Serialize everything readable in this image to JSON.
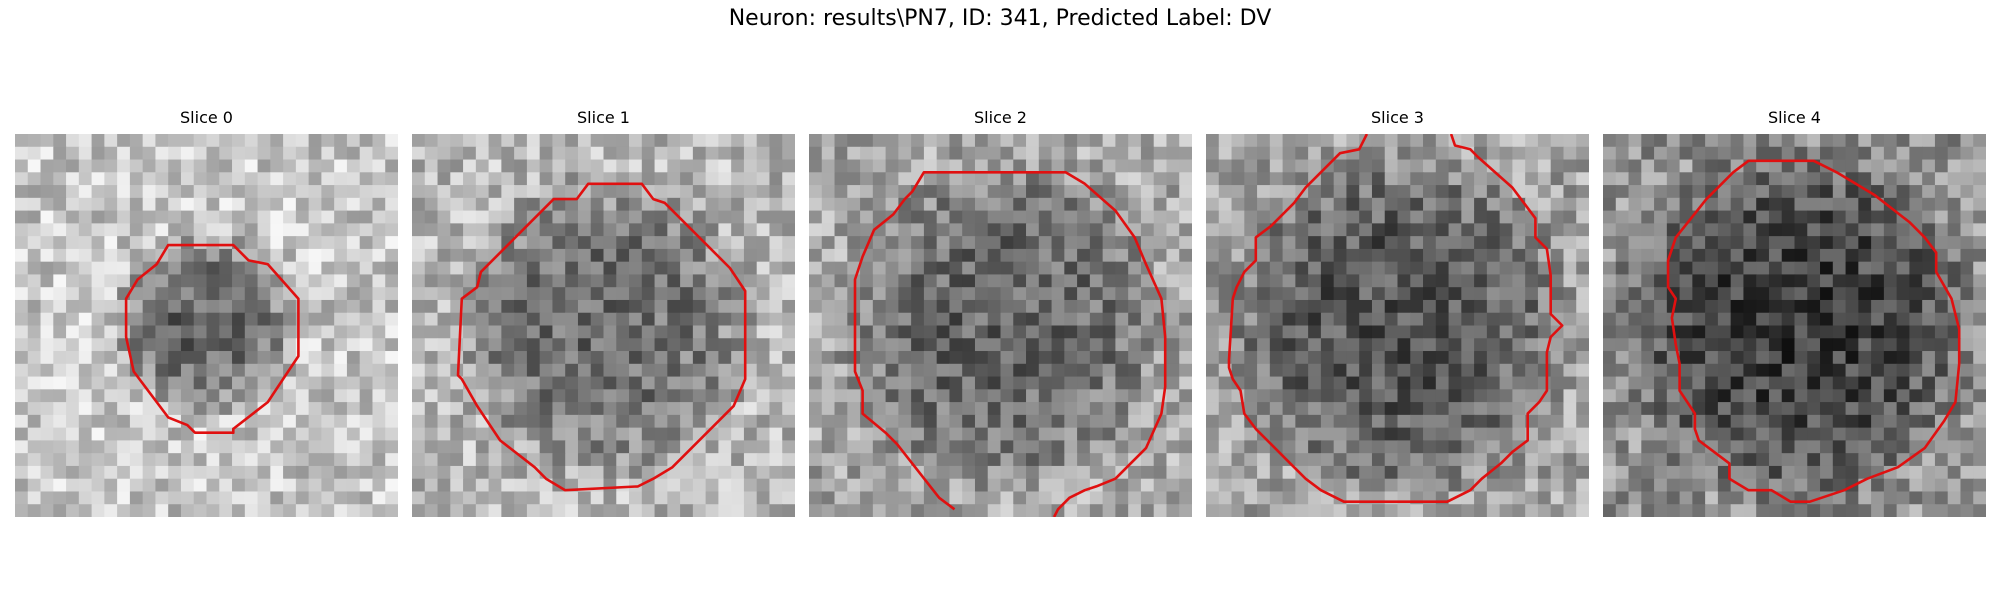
{
  "figure": {
    "title": "Neuron: results\\PN7, ID: 341, Predicted Label: DV"
  },
  "panels": [
    {
      "title": "Slice 0",
      "image": "grayscale-microscopy-slice",
      "seed": 11,
      "center_dark": 0.55,
      "dark_radius": 0.26,
      "base_light": 0.78,
      "contour": [
        [
          0.4,
          0.29
        ],
        [
          0.57,
          0.29
        ],
        [
          0.61,
          0.33
        ],
        [
          0.66,
          0.34
        ],
        [
          0.74,
          0.43
        ],
        [
          0.74,
          0.58
        ],
        [
          0.68,
          0.67
        ],
        [
          0.66,
          0.7
        ],
        [
          0.57,
          0.77
        ],
        [
          0.57,
          0.78
        ],
        [
          0.47,
          0.78
        ],
        [
          0.45,
          0.76
        ],
        [
          0.4,
          0.74
        ],
        [
          0.31,
          0.62
        ],
        [
          0.29,
          0.53
        ],
        [
          0.29,
          0.43
        ],
        [
          0.32,
          0.38
        ],
        [
          0.37,
          0.34
        ]
      ],
      "contour_color": "#e01010"
    },
    {
      "title": "Slice 1",
      "image": "grayscale-microscopy-slice",
      "seed": 23,
      "center_dark": 0.42,
      "dark_radius": 0.42,
      "base_light": 0.72,
      "contour": [
        [
          0.37,
          0.17
        ],
        [
          0.43,
          0.17
        ],
        [
          0.46,
          0.13
        ],
        [
          0.6,
          0.13
        ],
        [
          0.63,
          0.17
        ],
        [
          0.66,
          0.18
        ],
        [
          0.83,
          0.35
        ],
        [
          0.87,
          0.41
        ],
        [
          0.87,
          0.64
        ],
        [
          0.84,
          0.71
        ],
        [
          0.81,
          0.74
        ],
        [
          0.68,
          0.87
        ],
        [
          0.63,
          0.9
        ],
        [
          0.59,
          0.92
        ],
        [
          0.4,
          0.93
        ],
        [
          0.35,
          0.9
        ],
        [
          0.32,
          0.87
        ],
        [
          0.23,
          0.8
        ],
        [
          0.17,
          0.71
        ],
        [
          0.13,
          0.64
        ],
        [
          0.12,
          0.63
        ],
        [
          0.13,
          0.43
        ],
        [
          0.17,
          0.4
        ],
        [
          0.18,
          0.36
        ],
        [
          0.28,
          0.26
        ]
      ],
      "contour_color": "#e01010"
    },
    {
      "title": "Slice 2",
      "image": "grayscale-microscopy-slice",
      "seed": 37,
      "center_dark": 0.38,
      "dark_radius": 0.46,
      "base_light": 0.66,
      "contour": [
        [
          0.25,
          0.17
        ],
        [
          0.27,
          0.15
        ],
        [
          0.3,
          0.1
        ],
        [
          0.6,
          0.1
        ],
        [
          0.67,
          0.1
        ],
        [
          0.72,
          0.13
        ],
        [
          0.8,
          0.2
        ],
        [
          0.85,
          0.27
        ],
        [
          0.88,
          0.34
        ],
        [
          0.92,
          0.43
        ],
        [
          0.93,
          0.53
        ],
        [
          0.93,
          0.66
        ],
        [
          0.92,
          0.73
        ],
        [
          0.88,
          0.82
        ],
        [
          0.83,
          0.87
        ],
        [
          0.8,
          0.9
        ],
        [
          0.75,
          0.92
        ],
        [
          0.72,
          0.93
        ],
        [
          0.68,
          0.95
        ],
        [
          0.65,
          0.98
        ],
        [
          0.64,
          1.0
        ]
      ],
      "contour_tail": [
        [
          0.38,
          0.98
        ],
        [
          0.34,
          0.95
        ],
        [
          0.23,
          0.81
        ],
        [
          0.2,
          0.78
        ],
        [
          0.14,
          0.73
        ],
        [
          0.14,
          0.67
        ],
        [
          0.12,
          0.62
        ],
        [
          0.12,
          0.53
        ],
        [
          0.12,
          0.38
        ],
        [
          0.14,
          0.32
        ],
        [
          0.17,
          0.25
        ],
        [
          0.22,
          0.21
        ]
      ],
      "contour_color": "#e01010"
    },
    {
      "title": "Slice 3",
      "image": "grayscale-microscopy-slice",
      "seed": 51,
      "center_dark": 0.45,
      "dark_radius": 0.48,
      "base_light": 0.64,
      "contour": [
        [
          0.42,
          0.0
        ],
        [
          0.4,
          0.04
        ],
        [
          0.35,
          0.05
        ],
        [
          0.26,
          0.14
        ],
        [
          0.23,
          0.18
        ],
        [
          0.17,
          0.24
        ],
        [
          0.13,
          0.27
        ],
        [
          0.13,
          0.33
        ],
        [
          0.1,
          0.36
        ],
        [
          0.08,
          0.4
        ],
        [
          0.07,
          0.43
        ],
        [
          0.06,
          0.59
        ],
        [
          0.06,
          0.61
        ],
        [
          0.07,
          0.64
        ],
        [
          0.09,
          0.67
        ],
        [
          0.1,
          0.73
        ],
        [
          0.13,
          0.77
        ],
        [
          0.17,
          0.81
        ],
        [
          0.21,
          0.85
        ],
        [
          0.26,
          0.9
        ],
        [
          0.3,
          0.93
        ],
        [
          0.36,
          0.96
        ],
        [
          0.63,
          0.96
        ],
        [
          0.69,
          0.93
        ],
        [
          0.72,
          0.9
        ],
        [
          0.77,
          0.86
        ],
        [
          0.8,
          0.83
        ],
        [
          0.84,
          0.8
        ],
        [
          0.84,
          0.73
        ],
        [
          0.87,
          0.7
        ],
        [
          0.89,
          0.67
        ],
        [
          0.89,
          0.57
        ],
        [
          0.9,
          0.53
        ],
        [
          0.93,
          0.5
        ],
        [
          0.9,
          0.47
        ],
        [
          0.9,
          0.37
        ],
        [
          0.89,
          0.3
        ],
        [
          0.86,
          0.27
        ],
        [
          0.86,
          0.22
        ],
        [
          0.8,
          0.14
        ],
        [
          0.71,
          0.06
        ],
        [
          0.69,
          0.04
        ],
        [
          0.65,
          0.03
        ],
        [
          0.64,
          0.0
        ]
      ],
      "contour_color": "#e01010"
    },
    {
      "title": "Slice 4",
      "image": "grayscale-microscopy-slice",
      "seed": 67,
      "center_dark": 0.48,
      "dark_radius": 0.5,
      "base_light": 0.58,
      "contour": [
        [
          0.34,
          0.1
        ],
        [
          0.38,
          0.07
        ],
        [
          0.55,
          0.07
        ],
        [
          0.61,
          0.1
        ],
        [
          0.66,
          0.13
        ],
        [
          0.71,
          0.16
        ],
        [
          0.8,
          0.23
        ],
        [
          0.84,
          0.27
        ],
        [
          0.87,
          0.31
        ],
        [
          0.87,
          0.36
        ],
        [
          0.91,
          0.43
        ],
        [
          0.93,
          0.51
        ],
        [
          0.93,
          0.6
        ],
        [
          0.92,
          0.7
        ],
        [
          0.89,
          0.75
        ],
        [
          0.84,
          0.82
        ],
        [
          0.77,
          0.87
        ],
        [
          0.69,
          0.9
        ],
        [
          0.63,
          0.93
        ],
        [
          0.54,
          0.96
        ],
        [
          0.49,
          0.96
        ],
        [
          0.44,
          0.93
        ],
        [
          0.38,
          0.93
        ],
        [
          0.33,
          0.9
        ],
        [
          0.33,
          0.86
        ],
        [
          0.29,
          0.83
        ],
        [
          0.25,
          0.8
        ],
        [
          0.24,
          0.77
        ],
        [
          0.24,
          0.73
        ],
        [
          0.22,
          0.7
        ],
        [
          0.2,
          0.67
        ],
        [
          0.2,
          0.6
        ],
        [
          0.19,
          0.55
        ],
        [
          0.18,
          0.48
        ],
        [
          0.19,
          0.43
        ],
        [
          0.17,
          0.4
        ],
        [
          0.17,
          0.33
        ],
        [
          0.19,
          0.27
        ],
        [
          0.23,
          0.22
        ],
        [
          0.27,
          0.17
        ],
        [
          0.31,
          0.13
        ]
      ],
      "contour_color": "#e01010"
    }
  ]
}
